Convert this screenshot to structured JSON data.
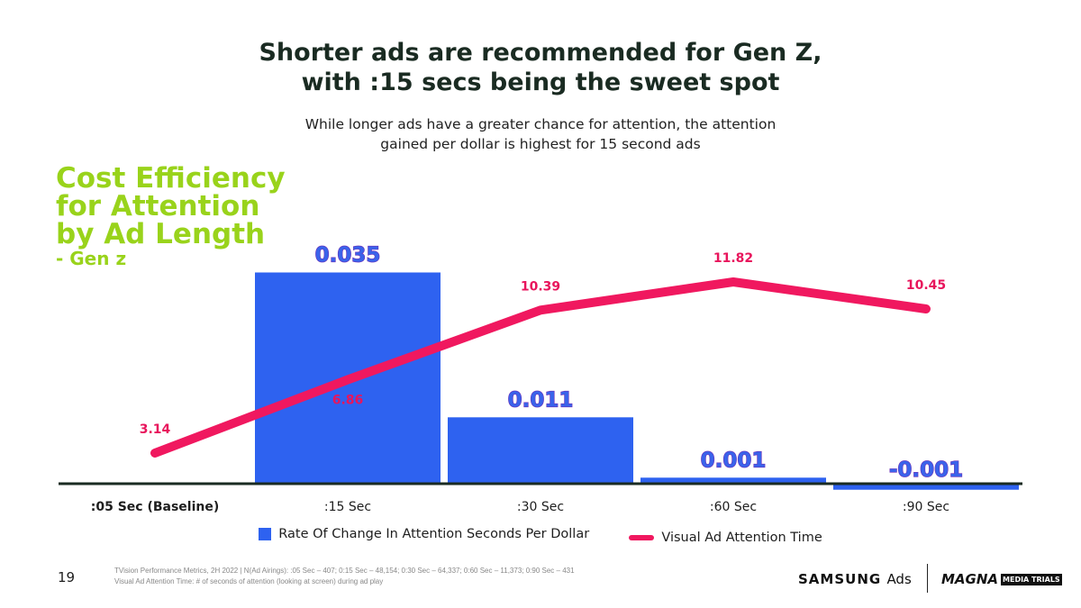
{
  "title_lines": [
    "Shorter ads are recommended for Gen Z,",
    "with :15 secs being the sweet spot"
  ],
  "subtitle_lines": [
    "While longer ads have a greater chance for attention, the attention",
    "gained per dollar is highest for 15 second ads"
  ],
  "chart_data": {
    "type": "bar",
    "title_lines": [
      "Cost Efficiency",
      "for Attention",
      "by Ad Length"
    ],
    "subtitle": "- Gen z",
    "categories": [
      ":05 Sec (Baseline)",
      ":15 Sec",
      ":30 Sec",
      ":60 Sec",
      ":90 Sec"
    ],
    "series": [
      {
        "name": "Rate Of Change In Attention Seconds Per Dollar",
        "type": "bar",
        "values": [
          null,
          0.035,
          0.011,
          0.001,
          -0.001
        ],
        "labels": [
          "",
          "0.035",
          "0.011",
          "0.001",
          "-0.001"
        ],
        "color": "#2e62f0"
      },
      {
        "name": "Visual Ad Attention Time",
        "type": "line",
        "values": [
          3.14,
          6.86,
          10.39,
          11.82,
          10.45
        ],
        "labels": [
          "3.14",
          "6.86",
          "10.39",
          "11.82",
          "10.45"
        ],
        "color": "#f0185f"
      }
    ],
    "legend_position": "bottom",
    "grid": false
  },
  "footer": {
    "page_number": "19",
    "footnote_lines": [
      "TVision Performance Metrics, 2H 2022 | N(Ad Airings): :05 Sec – 407; 0:15 Sec – 48,154; 0:30 Sec – 64,337; 0:60 Sec – 11,373; 0:90 Sec – 431",
      "Visual Ad Attention Time: # of seconds of attention (looking at screen) during ad play"
    ],
    "logo_samsung": "SAMSUNG",
    "logo_ads": "Ads",
    "logo_magna": "MAGNA",
    "logo_media_trials": "MEDIA TRIALS"
  }
}
